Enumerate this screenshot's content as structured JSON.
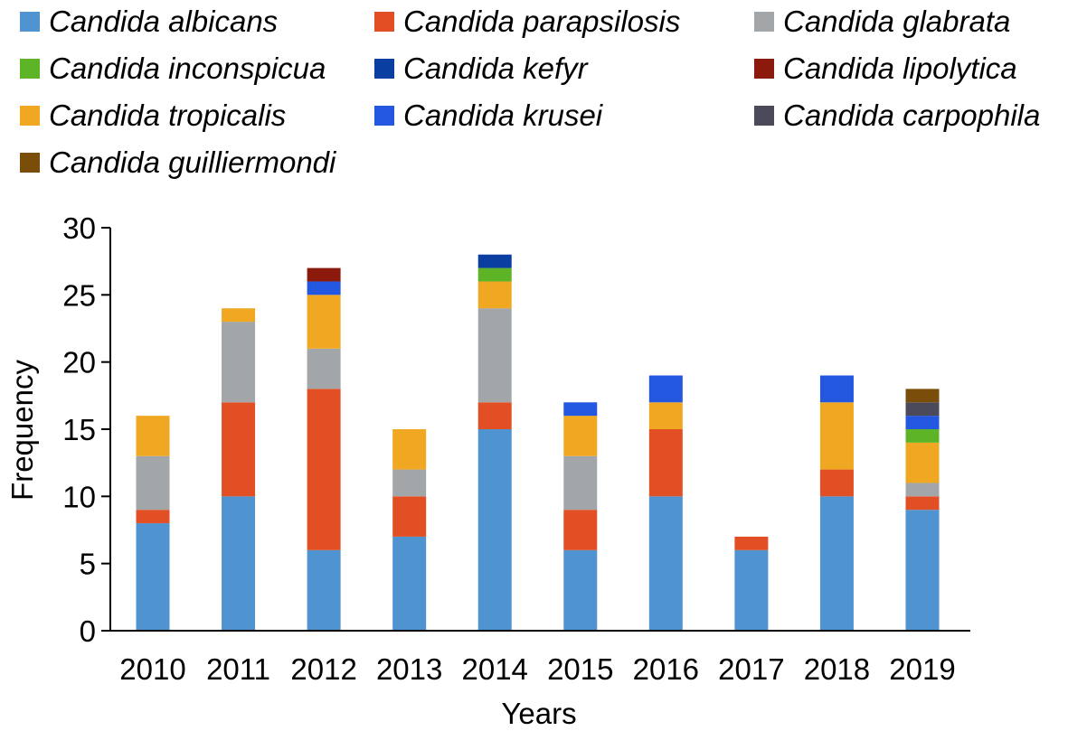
{
  "chart_data": {
    "type": "bar",
    "stacked": true,
    "xlabel": "Years",
    "ylabel": "Frequency",
    "ylim": [
      0,
      30
    ],
    "yticks": [
      0,
      5,
      10,
      15,
      20,
      25,
      30
    ],
    "grid": false,
    "legend_position": "top",
    "categories": [
      "2010",
      "2011",
      "2012",
      "2013",
      "2014",
      "2015",
      "2016",
      "2017",
      "2018",
      "2019"
    ],
    "series": [
      {
        "name": "Candida albicans",
        "color": "#4f93d1",
        "values": [
          8,
          10,
          6,
          7,
          15,
          6,
          10,
          6,
          10,
          9
        ]
      },
      {
        "name": "Candida parapsilosis",
        "color": "#e34f24",
        "values": [
          1,
          7,
          12,
          3,
          2,
          3,
          5,
          1,
          2,
          1
        ]
      },
      {
        "name": "Candida glabrata",
        "color": "#a3a6a8",
        "values": [
          4,
          6,
          3,
          2,
          7,
          4,
          0,
          0,
          0,
          1
        ]
      },
      {
        "name": "Candida inconspicua",
        "color": "#5db427",
        "values": [
          0,
          0,
          0,
          0,
          1,
          0,
          0,
          0,
          0,
          1
        ]
      },
      {
        "name": "Candida kefyr",
        "color": "#0a3ea0",
        "values": [
          0,
          0,
          0,
          0,
          1,
          0,
          0,
          0,
          0,
          0
        ]
      },
      {
        "name": "Candida lipolytica",
        "color": "#8b1a0d",
        "values": [
          0,
          0,
          1,
          0,
          0,
          0,
          0,
          0,
          0,
          0
        ]
      },
      {
        "name": "Candida tropicalis",
        "color": "#f0a722",
        "values": [
          3,
          1,
          4,
          3,
          2,
          3,
          2,
          0,
          5,
          3
        ]
      },
      {
        "name": "Candida krusei",
        "color": "#2457e0",
        "values": [
          0,
          0,
          1,
          0,
          0,
          1,
          2,
          0,
          2,
          1
        ]
      },
      {
        "name": "Candida carpophila",
        "color": "#4a4a5a",
        "values": [
          0,
          0,
          0,
          0,
          0,
          0,
          0,
          0,
          0,
          1
        ]
      },
      {
        "name": "Candida guilliermondi",
        "color": "#7a4e0a",
        "values": [
          0,
          0,
          0,
          0,
          0,
          0,
          0,
          0,
          0,
          1
        ]
      }
    ],
    "stack_order": [
      "Candida albicans",
      "Candida parapsilosis",
      "Candida glabrata",
      "Candida tropicalis",
      "Candida inconspicua",
      "Candida krusei",
      "Candida kefyr",
      "Candida lipolytica",
      "Candida carpophila",
      "Candida guilliermondi"
    ]
  }
}
